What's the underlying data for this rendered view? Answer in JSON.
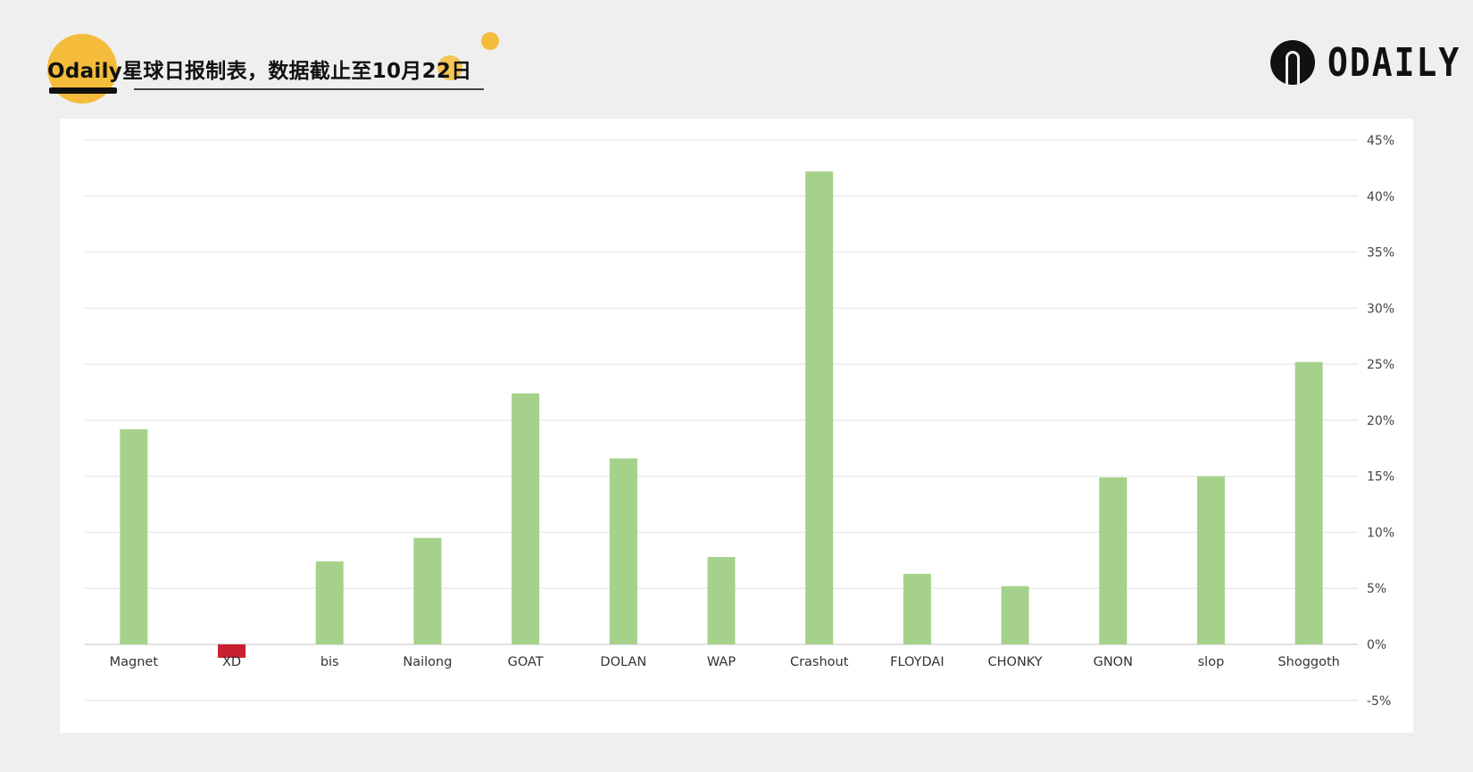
{
  "header": {
    "title": "Odaily星球日报制表，数据截止至10月22日",
    "logo_text": "ODAILY"
  },
  "colors": {
    "positive": "#a5d18a",
    "negative": "#c8202f",
    "accent": "#f4bc3a"
  },
  "chart_data": {
    "type": "bar",
    "title": "",
    "xlabel": "",
    "ylabel": "",
    "categories": [
      "Magnet",
      "XD",
      "bis",
      "Nailong",
      "GOAT",
      "DOLAN",
      "WAP",
      "Crashout",
      "FLOYDAI",
      "CHONKY",
      "GNON",
      "slop",
      "Shoggoth"
    ],
    "values": [
      19.2,
      -1.2,
      7.4,
      9.5,
      22.4,
      16.6,
      7.8,
      42.2,
      6.3,
      5.2,
      14.9,
      15.0,
      25.2
    ],
    "unit": "%",
    "ylim": [
      -5,
      45
    ],
    "yticks": [
      "45%",
      "40%",
      "35%",
      "30%",
      "25%",
      "20%",
      "15%",
      "10%",
      "5%",
      "0%",
      "-5%"
    ],
    "ytick_values": [
      45,
      40,
      35,
      30,
      25,
      20,
      15,
      10,
      5,
      0,
      -5
    ],
    "y_axis_side": "right",
    "grid": true,
    "legend": "none"
  }
}
